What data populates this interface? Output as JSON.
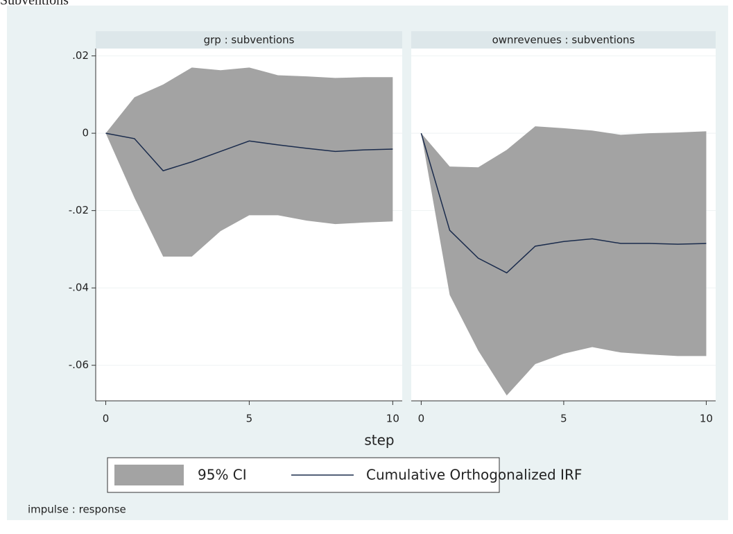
{
  "title": "Subventions",
  "x_label": "step",
  "note": "impulse : response",
  "chart_data": [
    {
      "type": "irf",
      "title": "grp : subventions",
      "x": [
        0,
        1,
        2,
        3,
        4,
        5,
        6,
        7,
        8,
        9,
        10
      ],
      "xlim": [
        -0.35,
        10.33
      ],
      "xticks": [
        0,
        5,
        10
      ],
      "ylim": [
        -0.0692,
        0.0219
      ],
      "yticks": [
        {
          "value": 0.02,
          "label": ".02"
        },
        0,
        {
          "value": -0.02,
          "label": "-.02"
        },
        {
          "value": -0.04,
          "label": "-.04"
        },
        {
          "value": -0.06,
          "label": "-.06"
        }
      ],
      "grid": true,
      "series": [
        {
          "name": "95% CI",
          "color": "#a3a3a3",
          "upper": [
            0,
            0.0093,
            0.0126,
            0.017,
            0.0163,
            0.017,
            0.015,
            0.0147,
            0.0143,
            0.0145,
            0.0145
          ],
          "lower": [
            0,
            -0.0167,
            -0.0319,
            -0.0319,
            -0.0253,
            -0.0212,
            -0.0212,
            -0.0226,
            -0.0235,
            -0.0231,
            -0.0228
          ]
        },
        {
          "name": "Cumulative Orthogonalized IRF",
          "color": "#1a2b4c",
          "values": [
            0,
            -0.0014,
            -0.0097,
            -0.0074,
            -0.0047,
            -0.002,
            -0.003,
            -0.0039,
            -0.0047,
            -0.0043,
            -0.0041
          ]
        }
      ]
    },
    {
      "type": "irf",
      "title": "ownrevenues : subventions",
      "x": [
        0,
        1,
        2,
        3,
        4,
        5,
        6,
        7,
        8,
        9,
        10
      ],
      "xlim": [
        -0.35,
        10.33
      ],
      "xticks": [
        0,
        5,
        10
      ],
      "ylim": [
        -0.0692,
        0.0219
      ],
      "series": [
        {
          "color": "#a3a3a3",
          "upper": [
            0,
            -0.0086,
            -0.0088,
            -0.0043,
            0.0018,
            0.0013,
            0.0007,
            -0.0004,
            0,
            0.0002,
            0.0005
          ],
          "lower": [
            0,
            -0.0418,
            -0.0562,
            -0.0678,
            -0.0597,
            -0.057,
            -0.0553,
            -0.0567,
            -0.0572,
            -0.0576,
            -0.0576
          ]
        },
        {
          "color": "#1a2b4c",
          "values": [
            0,
            -0.0251,
            -0.0323,
            -0.0361,
            -0.0292,
            -0.028,
            -0.0273,
            -0.0285,
            -0.0285,
            -0.0287,
            -0.0285
          ]
        }
      ]
    }
  ]
}
